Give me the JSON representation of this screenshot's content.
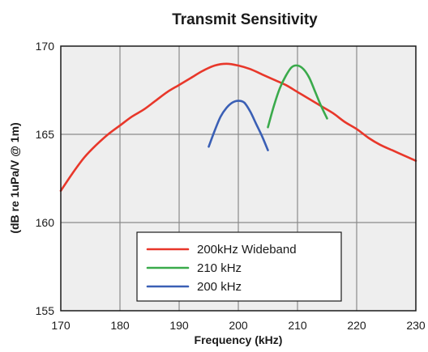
{
  "chart_data": {
    "type": "line",
    "title": "Transmit Sensitivity",
    "xlabel": "Frequency (kHz)",
    "ylabel": "(dB re 1uPa/V @ 1m)",
    "xlim": [
      170,
      230
    ],
    "ylim": [
      155,
      170
    ],
    "xticks": [
      170,
      180,
      190,
      200,
      210,
      220,
      230
    ],
    "yticks": [
      155,
      160,
      165,
      170
    ],
    "grid": true,
    "legend_position": "bottom-center",
    "series": [
      {
        "name": "200kHz Wideband",
        "color": "#e8372a",
        "x": [
          170,
          172,
          174,
          176,
          178,
          180,
          182,
          184,
          186,
          188,
          190,
          192,
          194,
          196,
          198,
          200,
          202,
          204,
          206,
          208,
          210,
          212,
          214,
          216,
          218,
          220,
          222,
          224,
          226,
          228,
          230
        ],
        "y": [
          161.8,
          162.8,
          163.7,
          164.4,
          165.0,
          165.5,
          166.0,
          166.4,
          166.9,
          167.4,
          167.8,
          168.2,
          168.6,
          168.9,
          169.0,
          168.9,
          168.7,
          168.4,
          168.1,
          167.8,
          167.4,
          167.0,
          166.6,
          166.2,
          165.7,
          165.3,
          164.8,
          164.4,
          164.1,
          163.8,
          163.5
        ]
      },
      {
        "name": "210 kHz",
        "color": "#3aaa4b",
        "x": [
          205,
          206,
          207,
          208,
          209,
          210,
          211,
          212,
          213,
          214,
          215
        ],
        "y": [
          165.4,
          166.6,
          167.6,
          168.3,
          168.8,
          168.9,
          168.7,
          168.2,
          167.4,
          166.6,
          165.9
        ]
      },
      {
        "name": "200 kHz",
        "color": "#3a5fb5",
        "x": [
          195,
          196,
          197,
          198,
          199,
          200,
          201,
          202,
          203,
          204,
          205
        ],
        "y": [
          164.3,
          165.2,
          166.0,
          166.5,
          166.8,
          166.9,
          166.8,
          166.3,
          165.6,
          164.9,
          164.1
        ]
      }
    ]
  }
}
